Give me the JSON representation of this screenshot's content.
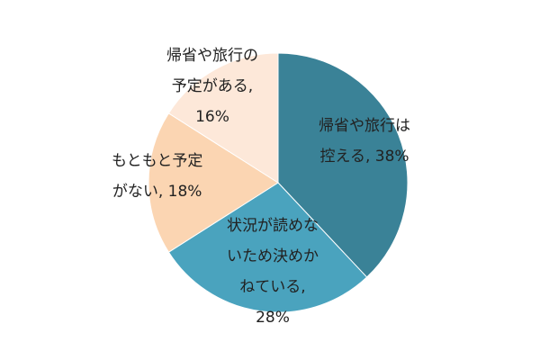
{
  "chart_data": {
    "type": "pie",
    "title": "",
    "start_angle_deg": 0,
    "direction": "clockwise",
    "slices": [
      {
        "label_lines": [
          "帰省や旅行は",
          "控える, 38%"
        ],
        "value": 38,
        "color": "#3a8297"
      },
      {
        "label_lines": [
          "状況が読めな",
          "いため決めか",
          "ねている,",
          "28%"
        ],
        "value": 28,
        "color": "#4aa3be"
      },
      {
        "label_lines": [
          "もともと予定",
          "がない, 18%"
        ],
        "value": 18,
        "color": "#fbd5b2"
      },
      {
        "label_lines": [
          "帰省や旅行の",
          "予定がある,",
          "16%"
        ],
        "value": 16,
        "color": "#fde8d9"
      }
    ]
  }
}
